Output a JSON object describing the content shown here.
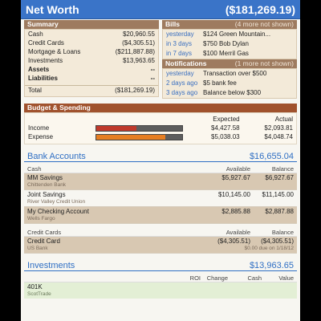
{
  "header": {
    "title": "Net Worth",
    "amount": "($181,269.19)"
  },
  "summary": {
    "title": "Summary",
    "rows": [
      {
        "label": "Cash",
        "value": "$20,960.55",
        "bold": false
      },
      {
        "label": "Credit Cards",
        "value": "($4,305.51)",
        "bold": false
      },
      {
        "label": "Mortgage & Loans",
        "value": "($211,887.88)",
        "bold": false
      },
      {
        "label": "Investments",
        "value": "$13,963.65",
        "bold": false
      },
      {
        "label": "Assets",
        "value": "--",
        "bold": true
      },
      {
        "label": "Liabilities",
        "value": "--",
        "bold": true
      }
    ],
    "total_label": "Total",
    "total_value": "($181,269.19)"
  },
  "bills": {
    "title": "Bills",
    "more": "(4 more not shown)",
    "items": [
      {
        "when": "yesterday",
        "what": "$124 Green Mountain..."
      },
      {
        "when": "in 3 days",
        "what": "$750 Bob Dylan"
      },
      {
        "when": "in 7 days",
        "what": "$100 Merril Gas"
      }
    ]
  },
  "notifications": {
    "title": "Notifications",
    "more": "(1 more not shown)",
    "items": [
      {
        "when": "yesterday",
        "what": "Transaction over $500"
      },
      {
        "when": "2 days ago",
        "what": "$5 bank fee"
      },
      {
        "when": "3 days ago",
        "what": "Balance below $300"
      }
    ]
  },
  "budget": {
    "title": "Budget & Spending",
    "col_expected": "Expected",
    "col_actual": "Actual",
    "rows": [
      {
        "label": "Income",
        "expected": "$4,427.58",
        "actual": "$2,093.81",
        "progress": 0.47,
        "color": "#c0392b"
      },
      {
        "label": "Expense",
        "expected": "$5,038.03",
        "actual": "$4,048.74",
        "progress": 0.8,
        "color": "#e67e22"
      }
    ]
  },
  "bank": {
    "title": "Bank Accounts",
    "total": "$16,655.04",
    "col_name": "Cash",
    "col_available": "Available",
    "col_balance": "Balance",
    "accounts": [
      {
        "name": "MM Savings",
        "sub": "Chittenden Bank",
        "available": "$5,927.67",
        "balance": "$6,927.67",
        "shade": true
      },
      {
        "name": "Joint Savings",
        "sub": "River Valley Credit Union",
        "available": "$10,145.00",
        "balance": "$11,145.00",
        "shade": false
      },
      {
        "name": "My Checking Account",
        "sub": "Wells Fargo",
        "available": "$2,885.88",
        "balance": "$2,887.88",
        "shade": true
      }
    ],
    "cc_label": "Credit Cards",
    "cards": [
      {
        "name": "Credit Card",
        "sub": "US Bank",
        "available": "($4,305.51)",
        "balance": "($4,305.51)",
        "note": "$0.00 due on 1/18/12"
      }
    ]
  },
  "investments": {
    "title": "Investments",
    "total": "$13,963.65",
    "col_roi": "ROI",
    "col_change": "Change",
    "col_cash": "Cash",
    "col_value": "Value",
    "items": [
      {
        "name": "401K",
        "sub": "ScotTrade"
      }
    ]
  }
}
